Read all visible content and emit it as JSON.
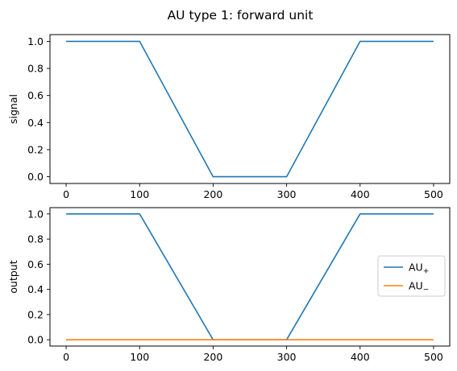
{
  "figure": {
    "title": "AU type 1: forward unit"
  },
  "chart_data": [
    {
      "type": "line",
      "xlabel": "",
      "ylabel": "signal",
      "xlim": [
        -22,
        522
      ],
      "ylim": [
        -0.05,
        1.05
      ],
      "xticks": [
        0,
        100,
        200,
        300,
        400,
        500
      ],
      "xtick_labels": [
        "0",
        "100",
        "200",
        "300",
        "400",
        "500"
      ],
      "yticks": [
        0.0,
        0.2,
        0.4,
        0.6,
        0.8,
        1.0
      ],
      "ytick_labels": [
        "0.0",
        "0.2",
        "0.4",
        "0.6",
        "0.8",
        "1.0"
      ],
      "grid": false,
      "series": [
        {
          "color": "#1f77b4",
          "x": [
            0,
            100,
            200,
            300,
            400,
            500
          ],
          "y": [
            1.0,
            1.0,
            0.0,
            0.0,
            1.0,
            1.0
          ]
        }
      ]
    },
    {
      "type": "line",
      "xlabel": "",
      "ylabel": "output",
      "xlim": [
        -22,
        522
      ],
      "ylim": [
        -0.05,
        1.05
      ],
      "xticks": [
        0,
        100,
        200,
        300,
        400,
        500
      ],
      "xtick_labels": [
        "0",
        "100",
        "200",
        "300",
        "400",
        "500"
      ],
      "yticks": [
        0.0,
        0.2,
        0.4,
        0.6,
        0.8,
        1.0
      ],
      "ytick_labels": [
        "0.0",
        "0.2",
        "0.4",
        "0.6",
        "0.8",
        "1.0"
      ],
      "grid": false,
      "legend": "center-right",
      "series": [
        {
          "name": "AU",
          "subscript": "+",
          "color": "#1f77b4",
          "x": [
            0,
            100,
            200,
            300,
            400,
            500
          ],
          "y": [
            1.0,
            1.0,
            0.0,
            0.0,
            1.0,
            1.0
          ]
        },
        {
          "name": "AU",
          "subscript": "−",
          "color": "#ff7f0e",
          "x": [
            0,
            100,
            200,
            300,
            400,
            500
          ],
          "y": [
            0.0,
            0.0,
            0.0,
            0.0,
            0.0,
            0.0
          ]
        }
      ]
    }
  ]
}
